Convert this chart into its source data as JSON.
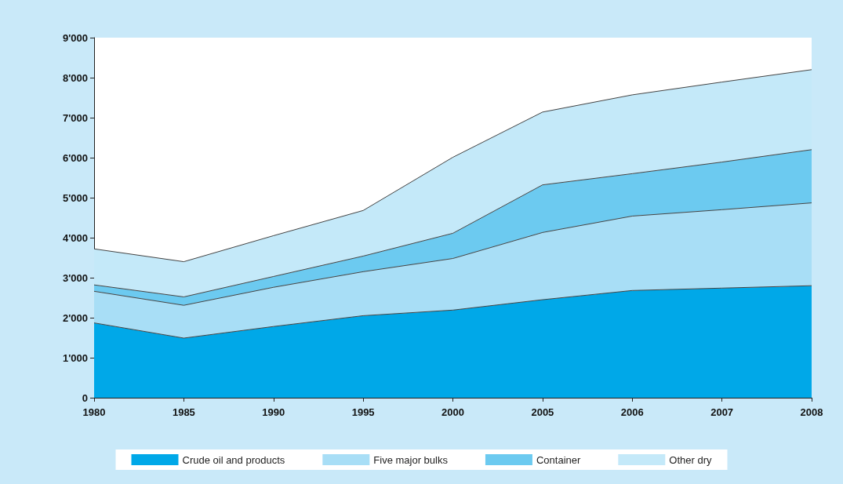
{
  "chart_data": {
    "type": "area",
    "stacked": true,
    "categories": [
      "1980",
      "1985",
      "1990",
      "1995",
      "2000",
      "2005",
      "2006",
      "2007",
      "2008"
    ],
    "series": [
      {
        "name": "Crude oil and products",
        "color": "#00a8e8",
        "values": [
          1870,
          1490,
          1780,
          2050,
          2190,
          2450,
          2680,
          2740,
          2800
        ]
      },
      {
        "name": "Five major bulks",
        "color": "#a8def6",
        "values": [
          790,
          820,
          980,
          1100,
          1290,
          1680,
          1860,
          1960,
          2070
        ]
      },
      {
        "name": "Container",
        "color": "#6ccaf0",
        "values": [
          160,
          210,
          270,
          390,
          630,
          1190,
          1060,
          1190,
          1330
        ]
      },
      {
        "name": "Other dry",
        "color": "#c4e9f9",
        "values": [
          900,
          880,
          1020,
          1140,
          1900,
          1820,
          1970,
          2000,
          2000
        ]
      }
    ],
    "ylim": [
      0,
      9000
    ],
    "yticks": [
      0,
      {
        "value": 1000,
        "label": "1'000"
      },
      {
        "value": 2000,
        "label": "2'000"
      },
      {
        "value": 3000,
        "label": "3'000"
      },
      {
        "value": 4000,
        "label": "4'000"
      },
      {
        "value": 5000,
        "label": "5'000"
      },
      {
        "value": 6000,
        "label": "6'000"
      },
      {
        "value": 7000,
        "label": "7'000"
      },
      {
        "value": 8000,
        "label": "8'000"
      },
      {
        "value": 9000,
        "label": "9'000"
      }
    ],
    "grid": false,
    "legend": "bottom"
  }
}
